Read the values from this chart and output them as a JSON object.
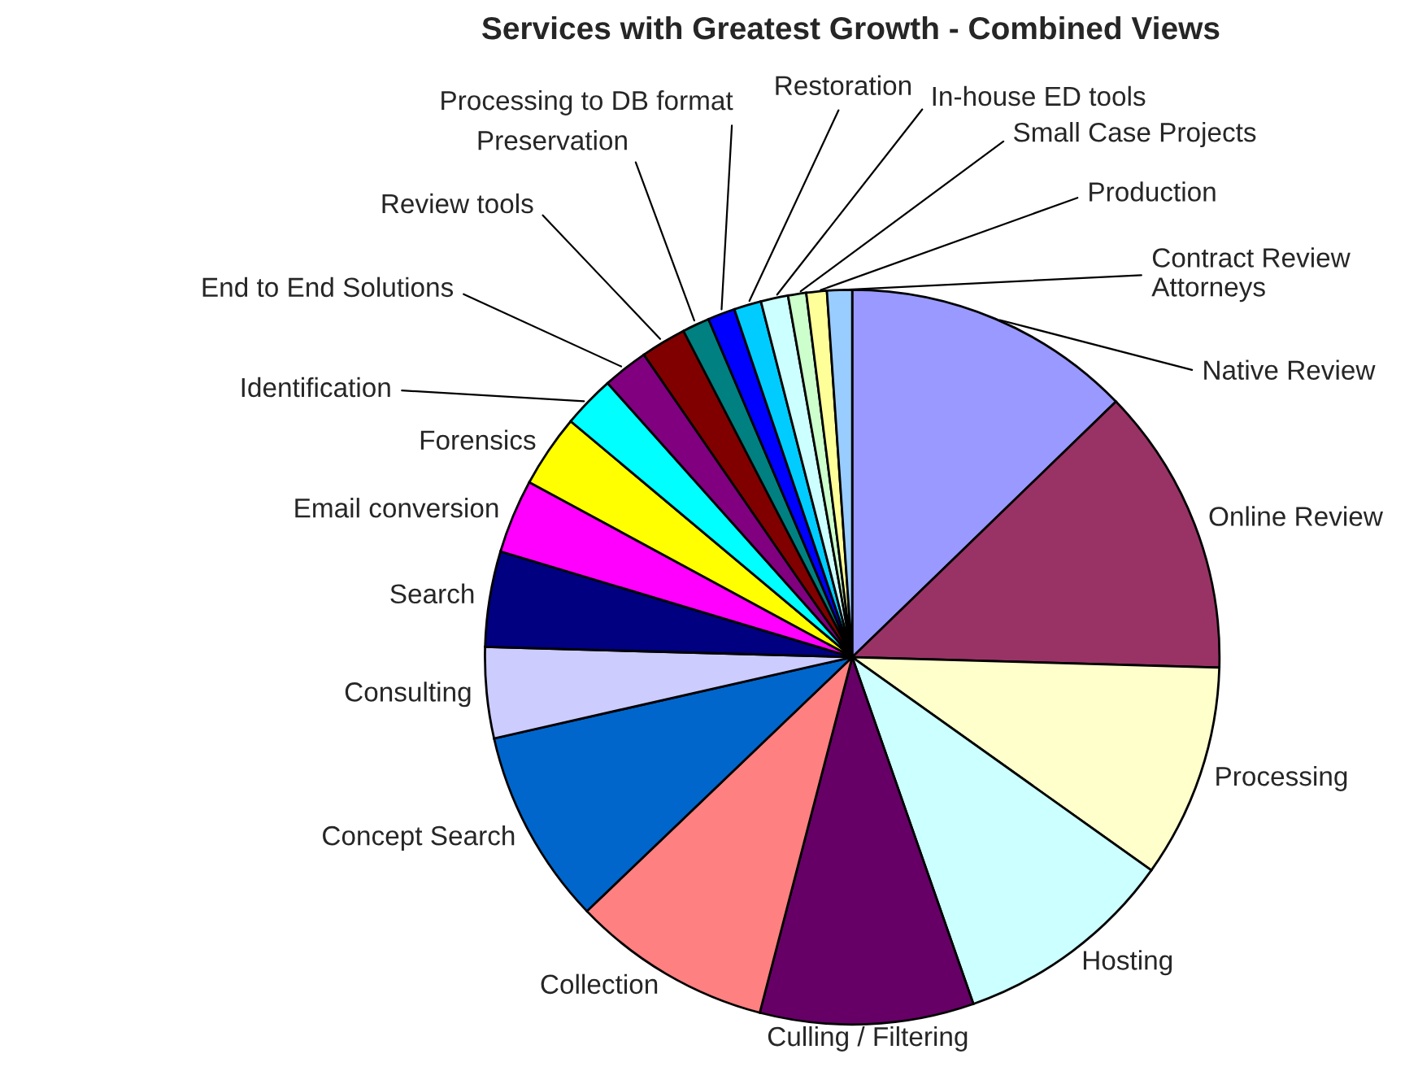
{
  "chart_data": {
    "type": "pie",
    "title": "Services with Greatest Growth - Combined Views",
    "categories": [
      "Native Review",
      "Online Review",
      "Processing",
      "Hosting",
      "Culling / Filtering",
      "Collection",
      "Concept Search",
      "Consulting",
      "Search",
      "Email conversion",
      "Forensics",
      "Identification",
      "End to End Solutions",
      "Review tools",
      "Preservation",
      "Processing to DB format",
      "Restoration",
      "In-house ED tools",
      "Small Case Projects",
      "Production",
      "Contract Review Attorneys"
    ],
    "values": [
      12.75,
      12.7,
      9.4,
      9.8,
      9.4,
      8.8,
      8.6,
      4.0,
      4.2,
      3.25,
      3.2,
      2.3,
      2.0,
      2.0,
      1.2,
      1.2,
      1.2,
      1.2,
      0.8,
      0.9,
      1.1
    ],
    "colors": [
      "#9999ff",
      "#993366",
      "#ffffcc",
      "#ccffff",
      "#660066",
      "#ff8080",
      "#0066cc",
      "#ccccff",
      "#000080",
      "#ff00ff",
      "#ffff00",
      "#00ffff",
      "#800080",
      "#800000",
      "#008080",
      "#0000ff",
      "#00ccff",
      "#ccffff",
      "#ccffcc",
      "#ffff99",
      "#99ccff"
    ]
  }
}
